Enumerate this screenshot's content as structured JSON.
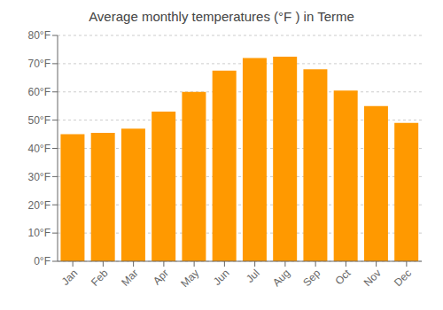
{
  "chart_data": {
    "type": "bar",
    "title": "Average monthly temperatures (°F ) in Terme",
    "categories": [
      "Jan",
      "Feb",
      "Mar",
      "Apr",
      "May",
      "Jun",
      "Jul",
      "Aug",
      "Sep",
      "Oct",
      "Nov",
      "Dec"
    ],
    "values": [
      45,
      45.5,
      47,
      53,
      60,
      67.5,
      72,
      72.5,
      68,
      60.5,
      55,
      49
    ],
    "color": "#FF9900",
    "ylim": [
      0,
      80
    ],
    "yticks": [
      {
        "value": 0,
        "label": "0°F"
      },
      {
        "value": 10,
        "label": "10°F"
      },
      {
        "value": 20,
        "label": "20°F"
      },
      {
        "value": 30,
        "label": "30°F"
      },
      {
        "value": 40,
        "label": "40°F"
      },
      {
        "value": 50,
        "label": "50°F"
      },
      {
        "value": 60,
        "label": "60°F"
      },
      {
        "value": 70,
        "label": "70°F"
      },
      {
        "value": 80,
        "label": "80°F"
      }
    ],
    "grid": true
  }
}
